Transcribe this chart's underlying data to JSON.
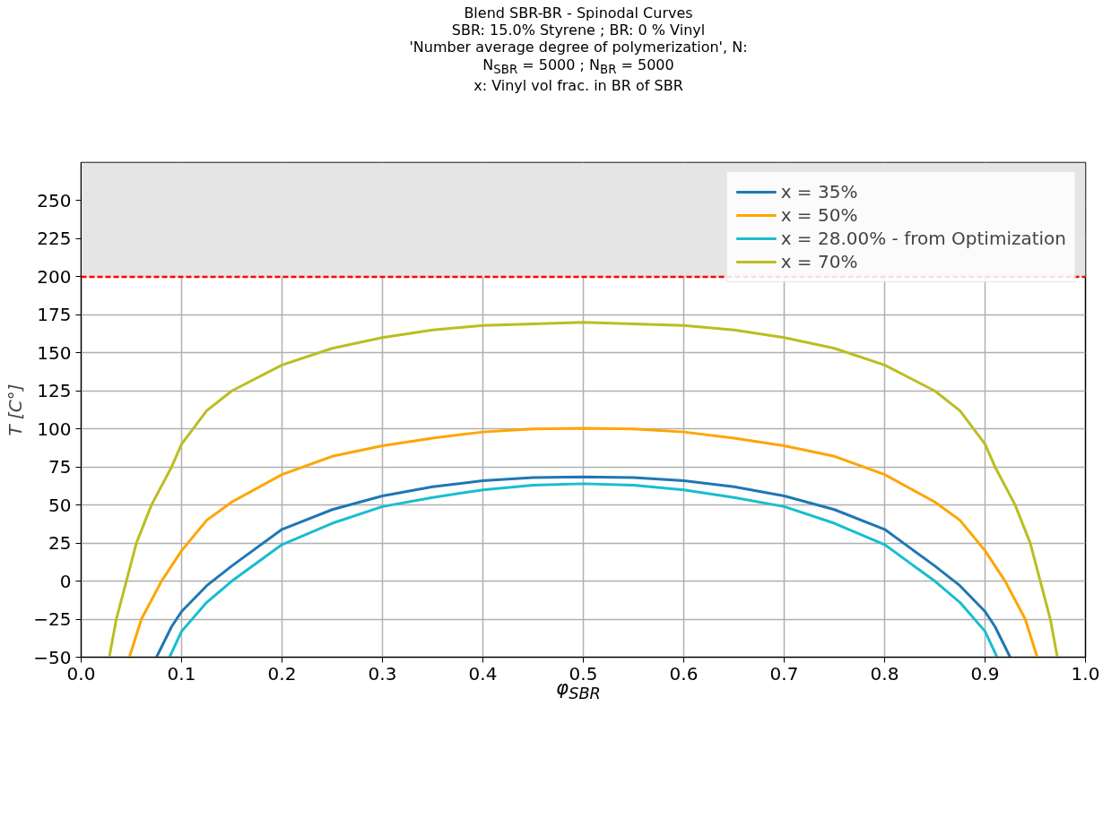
{
  "chart_data": {
    "type": "line",
    "title": "Blend SBR-BR - Spinodal Curves",
    "subtitle": "SBR: 15.0% Styrene ; BR: 0 % Vinyl\n'Number average degree of polymerization', N:\nN$_{SBR}$ = 5000 ; N$_{BR}$ = 5000\nx: Vinyl vol frac. in BR of SBR",
    "xlabel": "φ$_{SBR}$",
    "ylabel": "T [C°]",
    "series": [
      {
        "name": "x = 35%",
        "color": "#1f77b4",
        "x": [
          0.075,
          0.09,
          0.1,
          0.125,
          0.15,
          0.2,
          0.25,
          0.3,
          0.35,
          0.4,
          0.45,
          0.5,
          0.55,
          0.6,
          0.65,
          0.7,
          0.75,
          0.8,
          0.85,
          0.875,
          0.9,
          0.91,
          0.925
        ],
        "values": [
          -50,
          -30,
          -20,
          -3,
          10,
          34,
          47,
          56,
          62,
          66,
          68,
          68.5,
          68,
          66,
          62,
          56,
          47,
          34,
          10,
          -3,
          -20,
          -30,
          -50
        ]
      },
      {
        "name": "x = 50%",
        "color": "#ffa500",
        "x": [
          0.048,
          0.06,
          0.08,
          0.1,
          0.125,
          0.15,
          0.2,
          0.25,
          0.3,
          0.35,
          0.4,
          0.45,
          0.5,
          0.55,
          0.6,
          0.65,
          0.7,
          0.75,
          0.8,
          0.85,
          0.875,
          0.9,
          0.92,
          0.94,
          0.952
        ],
        "values": [
          -50,
          -25,
          0,
          20,
          40,
          52,
          70,
          82,
          89,
          94,
          98,
          100,
          100.5,
          100,
          98,
          94,
          89,
          82,
          70,
          52,
          40,
          20,
          0,
          -25,
          -50
        ]
      },
      {
        "name": "x = 28.00% - from Optimization",
        "color": "#17becf",
        "x": [
          0.088,
          0.1,
          0.125,
          0.15,
          0.2,
          0.25,
          0.3,
          0.35,
          0.4,
          0.45,
          0.5,
          0.55,
          0.6,
          0.65,
          0.7,
          0.75,
          0.8,
          0.85,
          0.875,
          0.9,
          0.912
        ],
        "values": [
          -50,
          -33,
          -14,
          0,
          24,
          38,
          49,
          55,
          60,
          63,
          64,
          63,
          60,
          55,
          49,
          38,
          24,
          0,
          -14,
          -33,
          -50
        ]
      },
      {
        "name": "x = 70%",
        "color": "#bcbd22",
        "x": [
          0.028,
          0.035,
          0.045,
          0.055,
          0.07,
          0.09,
          0.1,
          0.125,
          0.15,
          0.2,
          0.25,
          0.3,
          0.35,
          0.4,
          0.45,
          0.5,
          0.55,
          0.6,
          0.65,
          0.7,
          0.75,
          0.8,
          0.85,
          0.875,
          0.9,
          0.91,
          0.93,
          0.945,
          0.955,
          0.965,
          0.972
        ],
        "values": [
          -50,
          -25,
          0,
          25,
          50,
          75,
          90,
          112,
          125,
          142,
          153,
          160,
          165,
          168,
          169,
          170,
          169,
          168,
          165,
          160,
          153,
          142,
          125,
          112,
          90,
          75,
          50,
          25,
          0,
          -25,
          -50
        ]
      }
    ],
    "xlim": [
      0,
      1
    ],
    "xticks": [
      {
        "value": 0,
        "label": "0.0"
      },
      0.1,
      0.2,
      0.3,
      0.4,
      0.5,
      0.6,
      0.7,
      0.8,
      0.9,
      {
        "value": 1,
        "label": "1.0"
      }
    ],
    "ylim": [
      -50,
      275
    ],
    "yticks": [
      -50,
      -25,
      0,
      25,
      50,
      75,
      100,
      125,
      150,
      175,
      200,
      225,
      250
    ],
    "ref_lines": [
      {
        "axis": "y",
        "value": 200,
        "color": "#ff0000",
        "line_style": "dashed"
      }
    ],
    "bands": [
      {
        "axis": "y",
        "from": 200,
        "to": 275,
        "color": "#e5e5e5"
      }
    ],
    "grid": true,
    "legend": "top right",
    "line_style": "solid"
  }
}
